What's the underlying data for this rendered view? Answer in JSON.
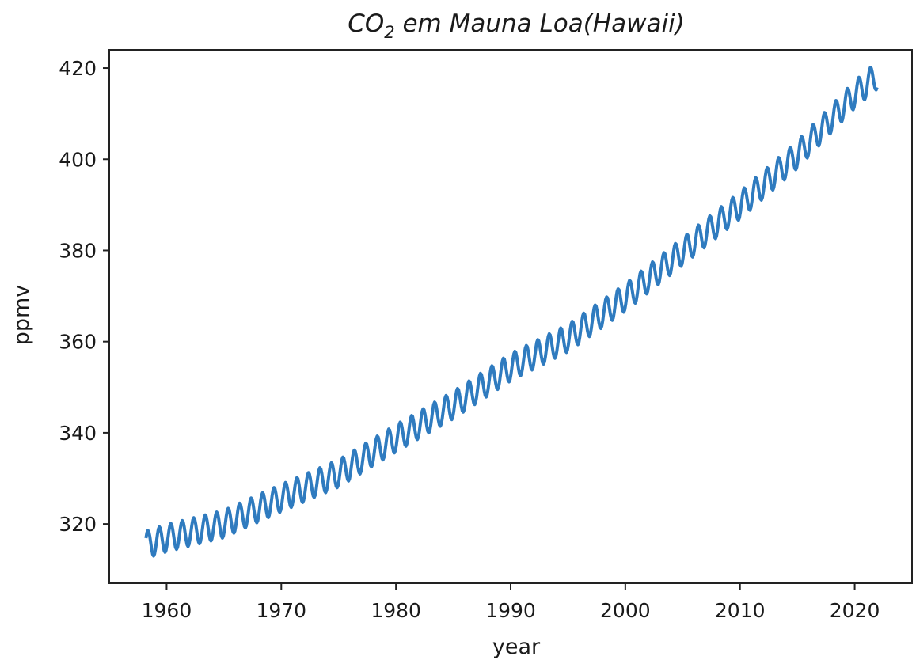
{
  "chart_data": {
    "type": "line",
    "title": {
      "base": "CO",
      "subscript": "2",
      "rest": " em Mauna Loa(Hawaii)"
    },
    "xlabel": "year",
    "ylabel": "ppmv",
    "xlim": [
      1955,
      2025
    ],
    "ylim": [
      307,
      424
    ],
    "xticks": [
      1960,
      1970,
      1980,
      1990,
      2000,
      2010,
      2020
    ],
    "yticks": [
      320,
      340,
      360,
      380,
      400,
      420
    ],
    "grid": false,
    "series": [
      {
        "color": "#2f7bbf",
        "x_start": 1958.2,
        "x_end": 2022.0,
        "seasonal_amplitude": 3.0,
        "annual_means": [
          {
            "year": 1958,
            "ppmv": 315.3
          },
          {
            "year": 1960,
            "ppmv": 316.9
          },
          {
            "year": 1965,
            "ppmv": 320.0
          },
          {
            "year": 1970,
            "ppmv": 325.7
          },
          {
            "year": 1975,
            "ppmv": 331.1
          },
          {
            "year": 1980,
            "ppmv": 338.8
          },
          {
            "year": 1985,
            "ppmv": 346.1
          },
          {
            "year": 1990,
            "ppmv": 354.4
          },
          {
            "year": 1995,
            "ppmv": 360.8
          },
          {
            "year": 2000,
            "ppmv": 369.7
          },
          {
            "year": 2005,
            "ppmv": 379.8
          },
          {
            "year": 2010,
            "ppmv": 389.9
          },
          {
            "year": 2015,
            "ppmv": 401.0
          },
          {
            "year": 2020,
            "ppmv": 414.2
          },
          {
            "year": 2022,
            "ppmv": 418.5
          }
        ]
      }
    ]
  }
}
